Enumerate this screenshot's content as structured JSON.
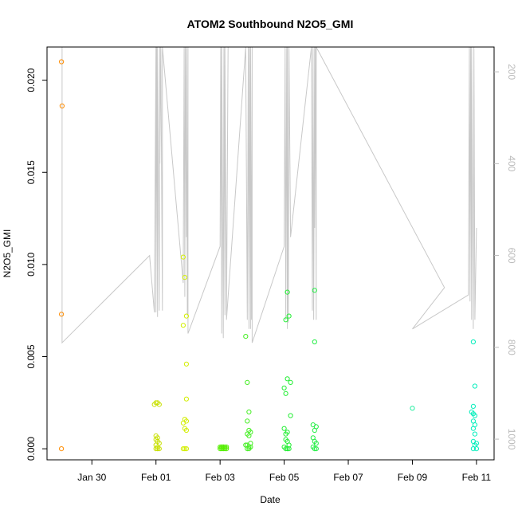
{
  "chart_data": {
    "type": "scatter",
    "title": "ATOM2 Southbound N2O5_GMI",
    "xlabel": "Date",
    "ylabel": "N2O5_GMI",
    "x_ticks": [
      {
        "label": "Jan 30",
        "day": 0
      },
      {
        "label": "Feb 01",
        "day": 2
      },
      {
        "label": "Feb 03",
        "day": 4
      },
      {
        "label": "Feb 05",
        "day": 6
      },
      {
        "label": "Feb 07",
        "day": 8
      },
      {
        "label": "Feb 09",
        "day": 10
      },
      {
        "label": "Feb 11",
        "day": 12
      }
    ],
    "xlim": [
      -1.4,
      12.55
    ],
    "ylim": [
      -0.0006,
      0.0218
    ],
    "y_ticks": [
      {
        "label": "0.000",
        "value": 0.0
      },
      {
        "label": "0.005",
        "value": 0.005
      },
      {
        "label": "0.010",
        "value": 0.01
      },
      {
        "label": "0.015",
        "value": 0.015
      },
      {
        "label": "0.020",
        "value": 0.02
      }
    ],
    "y2_range": [
      1045,
      146
    ],
    "y2_ticks": [
      {
        "label": "200",
        "value": 200
      },
      {
        "label": "400",
        "value": 400
      },
      {
        "label": "600",
        "value": 600
      },
      {
        "label": "800",
        "value": 800
      },
      {
        "label": "1000",
        "value": 1000
      }
    ],
    "series": [
      {
        "color": "#ff8c00",
        "x": [
          -0.95,
          -0.93,
          -0.95,
          -0.95
        ],
        "y": [
          0.021,
          0.0186,
          0.0073,
          0.0
        ]
      },
      {
        "color": "#c8e000",
        "x": [
          2.0,
          1.95,
          2.05,
          2.1,
          2.0,
          2.05,
          2.0,
          2.05,
          2.1,
          2.0,
          2.05,
          2.1,
          2.0,
          2.05
        ],
        "y": [
          0.0025,
          0.0024,
          0.0025,
          0.0024,
          0.0007,
          0.0006,
          0.0005,
          0.0004,
          0.0003,
          0.0002,
          0.0001,
          0.0,
          0.0,
          0.0
        ]
      },
      {
        "color": "#d2ee00",
        "x": [
          2.85,
          2.9,
          2.95,
          2.85,
          2.95,
          2.95,
          2.9,
          2.95,
          2.85,
          2.9,
          2.95,
          2.85,
          2.9,
          2.95
        ],
        "y": [
          0.0104,
          0.0093,
          0.0072,
          0.0067,
          0.0046,
          0.0027,
          0.0016,
          0.0015,
          0.0014,
          0.0011,
          0.001,
          0.0,
          0.0,
          0.0
        ]
      },
      {
        "color": "#55ee00",
        "x": [
          4.0,
          4.05,
          4.1,
          4.15,
          4.2,
          4.0,
          4.05,
          4.1,
          4.15,
          4.2,
          4.05,
          4.1
        ],
        "y": [
          0.0001,
          0.0001,
          0.0001,
          0.0001,
          0.0001,
          0.0,
          0.0,
          0.0,
          0.0,
          0.0,
          0.0001,
          0.0001
        ]
      },
      {
        "color": "#44ee22",
        "x": [
          4.8,
          4.85,
          4.9,
          4.85,
          4.9,
          4.95,
          4.85,
          4.9,
          4.95,
          4.8,
          4.85,
          4.9,
          4.95,
          4.85,
          4.9
        ],
        "y": [
          0.0061,
          0.0036,
          0.002,
          0.0015,
          0.001,
          0.0009,
          0.0008,
          0.0007,
          0.0003,
          0.0002,
          0.0002,
          0.0001,
          0.0001,
          0.0,
          0.0
        ]
      },
      {
        "color": "#22ee33",
        "x": [
          6.1,
          6.15,
          6.05,
          6.1,
          6.2,
          6.0,
          6.05,
          6.2,
          6.0,
          6.05,
          6.1,
          6.05,
          6.1,
          6.15,
          6.0,
          6.05,
          6.1,
          6.15
        ],
        "y": [
          0.0085,
          0.0072,
          0.007,
          0.0038,
          0.0036,
          0.0033,
          0.003,
          0.0018,
          0.0011,
          0.0008,
          0.0009,
          0.0005,
          0.0004,
          0.0002,
          0.0001,
          0.0,
          0.0,
          0.0
        ]
      },
      {
        "color": "#22ee44",
        "x": [
          6.95,
          6.95,
          6.9,
          7.0,
          6.95,
          6.9,
          6.95,
          7.0,
          6.9,
          6.95,
          7.0
        ],
        "y": [
          0.0086,
          0.0058,
          0.0013,
          0.0012,
          0.001,
          0.0006,
          0.0004,
          0.0003,
          0.0001,
          0.0,
          0.0
        ]
      },
      {
        "color": "#22eea0",
        "x": [
          10.0
        ],
        "y": [
          0.0022
        ]
      },
      {
        "color": "#00eebb",
        "x": [
          11.9,
          11.95,
          11.9,
          11.85,
          11.9,
          11.95,
          11.9,
          11.95,
          11.9,
          11.95,
          11.9,
          12.0,
          11.95,
          11.9,
          12.0
        ],
        "y": [
          0.0058,
          0.0034,
          0.0023,
          0.002,
          0.0019,
          0.0018,
          0.0015,
          0.0013,
          0.0011,
          0.0008,
          0.0004,
          0.0003,
          0.0002,
          0.0,
          0.0
        ]
      }
    ],
    "pressure_line": {
      "color": "#c8c8c8",
      "x": [
        -0.95,
        -0.93,
        -0.93,
        1.8,
        1.95,
        2.0,
        2.0,
        2.02,
        2.05,
        2.05,
        2.1,
        2.12,
        2.12,
        2.15,
        2.2,
        2.2,
        2.85,
        2.88,
        2.9,
        2.92,
        2.95,
        2.95,
        2.98,
        3.0,
        3.0,
        4.0,
        4.02,
        4.05,
        4.05,
        4.1,
        4.12,
        4.15,
        4.15,
        4.2,
        4.25,
        4.2,
        4.8,
        4.85,
        4.88,
        4.9,
        4.92,
        4.95,
        4.95,
        4.98,
        5.0,
        5.0,
        6.0,
        6.03,
        6.05,
        6.08,
        6.1,
        6.1,
        6.13,
        6.15,
        6.2,
        6.85,
        6.88,
        6.9,
        6.92,
        6.95,
        6.95,
        6.98,
        7.0,
        7.0,
        11.0,
        10.0,
        11.75,
        11.78,
        11.8,
        11.82,
        11.85,
        11.85,
        11.9,
        11.92,
        11.95,
        12.0
      ],
      "y": [
        146,
        146,
        790,
        600,
        724,
        146,
        724,
        146,
        734,
        146,
        720,
        146,
        400,
        146,
        720,
        146,
        660,
        146,
        690,
        146,
        560,
        146,
        730,
        146,
        770,
        580,
        146,
        770,
        146,
        780,
        146,
        730,
        146,
        720,
        146,
        740,
        146,
        740,
        146,
        760,
        146,
        760,
        146,
        740,
        146,
        790,
        580,
        146,
        740,
        146,
        760,
        146,
        746,
        146,
        560,
        146,
        720,
        146,
        740,
        146,
        540,
        146,
        740,
        146,
        670,
        760,
        686,
        146,
        700,
        146,
        740,
        146,
        760,
        146,
        740,
        540
      ]
    }
  }
}
